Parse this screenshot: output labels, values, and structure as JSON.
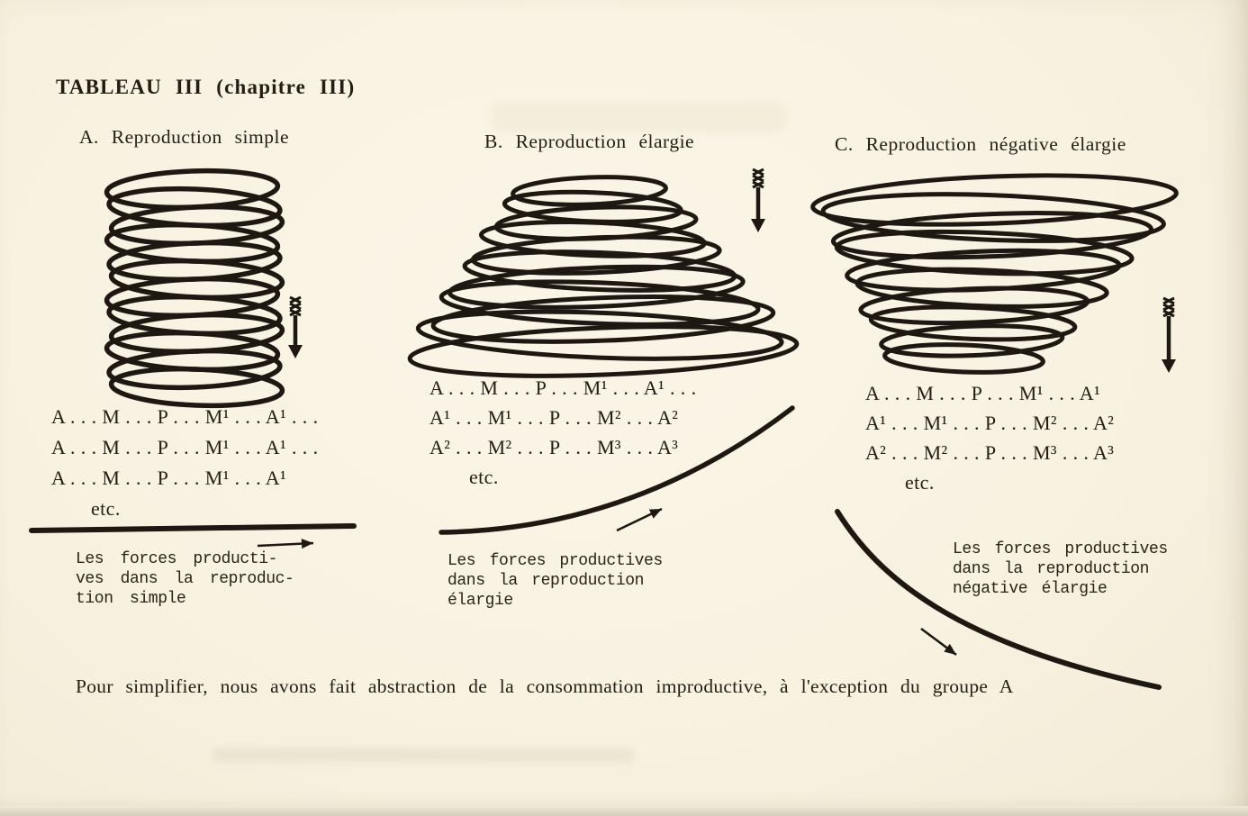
{
  "page": {
    "title": "TABLEAU III (chapitre III)",
    "footnote": "Pour simplifier, nous avons fait abstraction de la consommation improductive, à l'exception du groupe A"
  },
  "colors": {
    "paper": "#f8f2e1",
    "ink": "#1d1812"
  },
  "sections": [
    {
      "label": "A. Reproduction simple",
      "spiral_shape": "cylindrical coil, constant width, downward arrow",
      "formula_lines": [
        "A . . . M . . . P . . . M¹ . . . A¹ . . .",
        "A . . . M . . . P . . . M¹ . . . A¹ . . .",
        "A . . . M . . . P . . . M¹ . . . A¹",
        "etc."
      ],
      "caption_lines": [
        "Les forces producti-",
        "ves dans la reproduc-",
        "tion simple"
      ],
      "trend": "constant horizontal rule with right arrow"
    },
    {
      "label": "B. Reproduction élargie",
      "spiral_shape": "coil widening downward, downward arrow",
      "formula_lines": [
        "A . . . M . . . P . . . M¹ . . . A¹ . . .",
        "A¹ . . . M¹ . . . P . . . M² . . . A²",
        "A² . . . M² . . . P . . . M³ . . . A³",
        "etc."
      ],
      "caption_lines": [
        "Les forces productives",
        "dans la reproduction",
        "élargie"
      ],
      "trend": "rising curve with up-right arrow"
    },
    {
      "label": "C. Reproduction négative élargie",
      "spiral_shape": "coil narrowing downward, downward arrow",
      "formula_lines": [
        "A . . . M . . . P . . . M¹ . . . A¹",
        "A¹ . . . M¹ . . . P . . . M² . . . A²",
        "A² . . . M² . . . P . . . M³ . . . A³",
        "etc."
      ],
      "caption_lines": [
        "Les forces productives",
        "dans la reproduction",
        "négative élargie"
      ],
      "trend": "falling curve with down-right arrow"
    }
  ]
}
